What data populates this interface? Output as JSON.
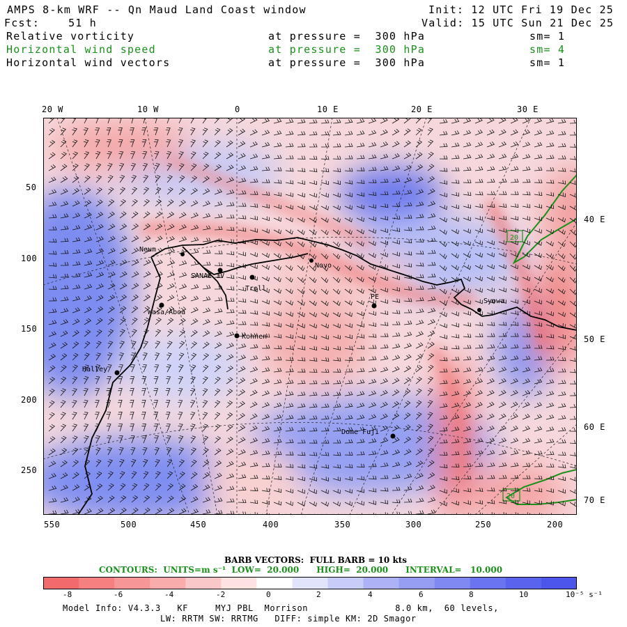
{
  "header": {
    "title": "AMPS 8-km WRF -- Qn Maud Land Coast window",
    "fcst": "Fcst:    51 h",
    "init": "Init: 12 UTC Fri 19 Dec 25",
    "valid": "Valid: 15 UTC Sun 21 Dec 25",
    "fields": [
      {
        "name": "Relative vorticity",
        "level": "at pressure =  300 hPa",
        "sm": "sm= 1",
        "color": "#000000"
      },
      {
        "name": "Horizontal wind speed",
        "level": "at pressure =  300 hPa",
        "sm": "sm= 4",
        "color": "#1a8f1a"
      },
      {
        "name": "Horizontal wind vectors",
        "level": "at pressure =  300 hPa",
        "sm": "sm= 1",
        "color": "#000000"
      }
    ]
  },
  "map": {
    "top_lon_labels": [
      "20 W",
      "10 W",
      "0",
      "10 E",
      "20 E",
      "30 E"
    ],
    "right_lon_labels": [
      "40 E",
      "50 E",
      "60 E",
      "70 E"
    ],
    "left_grid_labels": [
      "50",
      "100",
      "150",
      "200",
      "250"
    ],
    "bottom_grid_labels": [
      "550",
      "500",
      "450",
      "400",
      "350",
      "300",
      "250",
      "200"
    ],
    "stations": [
      {
        "name": "Neum",
        "id": "neumayer"
      },
      {
        "name": "SANAE IV",
        "id": "sanae"
      },
      {
        "name": "Troll",
        "id": "troll"
      },
      {
        "name": "Novo",
        "id": "novo"
      },
      {
        "name": "PE",
        "id": "pe"
      },
      {
        "name": "Syowa",
        "id": "syowa"
      },
      {
        "name": "Wasa/Aboa",
        "id": "wasa"
      },
      {
        "name": "Kohnen",
        "id": "kohnen"
      },
      {
        "name": "Halley",
        "id": "halley"
      },
      {
        "name": "Dome Fuji",
        "id": "domefuji"
      }
    ],
    "contour_labels": [
      "20",
      "20"
    ],
    "colors": {
      "positive": "#5a6cf0",
      "negative": "#f07070",
      "contour": "#1a8f1a"
    }
  },
  "legend": {
    "barb_title": "BARB VECTORS:  FULL BARB = 10 kts",
    "contours_line": "CONTOURS:  UNITS=m s⁻¹  LOW=  20.000      HIGH=  20.000      INTERVAL=   10.000",
    "colorbar_ticks": [
      "-8",
      "-6",
      "-4",
      "-2",
      "0",
      "2",
      "4",
      "6",
      "8",
      "10",
      "10⁻⁵ s⁻¹"
    ],
    "colorbar_colors": [
      "#f26b6b",
      "#f48080",
      "#f69696",
      "#f8acac",
      "#fac8c8",
      "#fde2e2",
      "#ffffff",
      "#e2e4fb",
      "#c8ccf8",
      "#acb2f5",
      "#969ef4",
      "#8088f2",
      "#6b74f0",
      "#5a63ee",
      "#4c56ea"
    ]
  },
  "footer": {
    "line1": "Model Info: V4.3.3   KF     MYJ PBL  Morrison                8.0 km,  60 levels,",
    "line2": "LW: RRTM SW: RRTMG   DIFF: simple KM: 2D Smagor"
  }
}
